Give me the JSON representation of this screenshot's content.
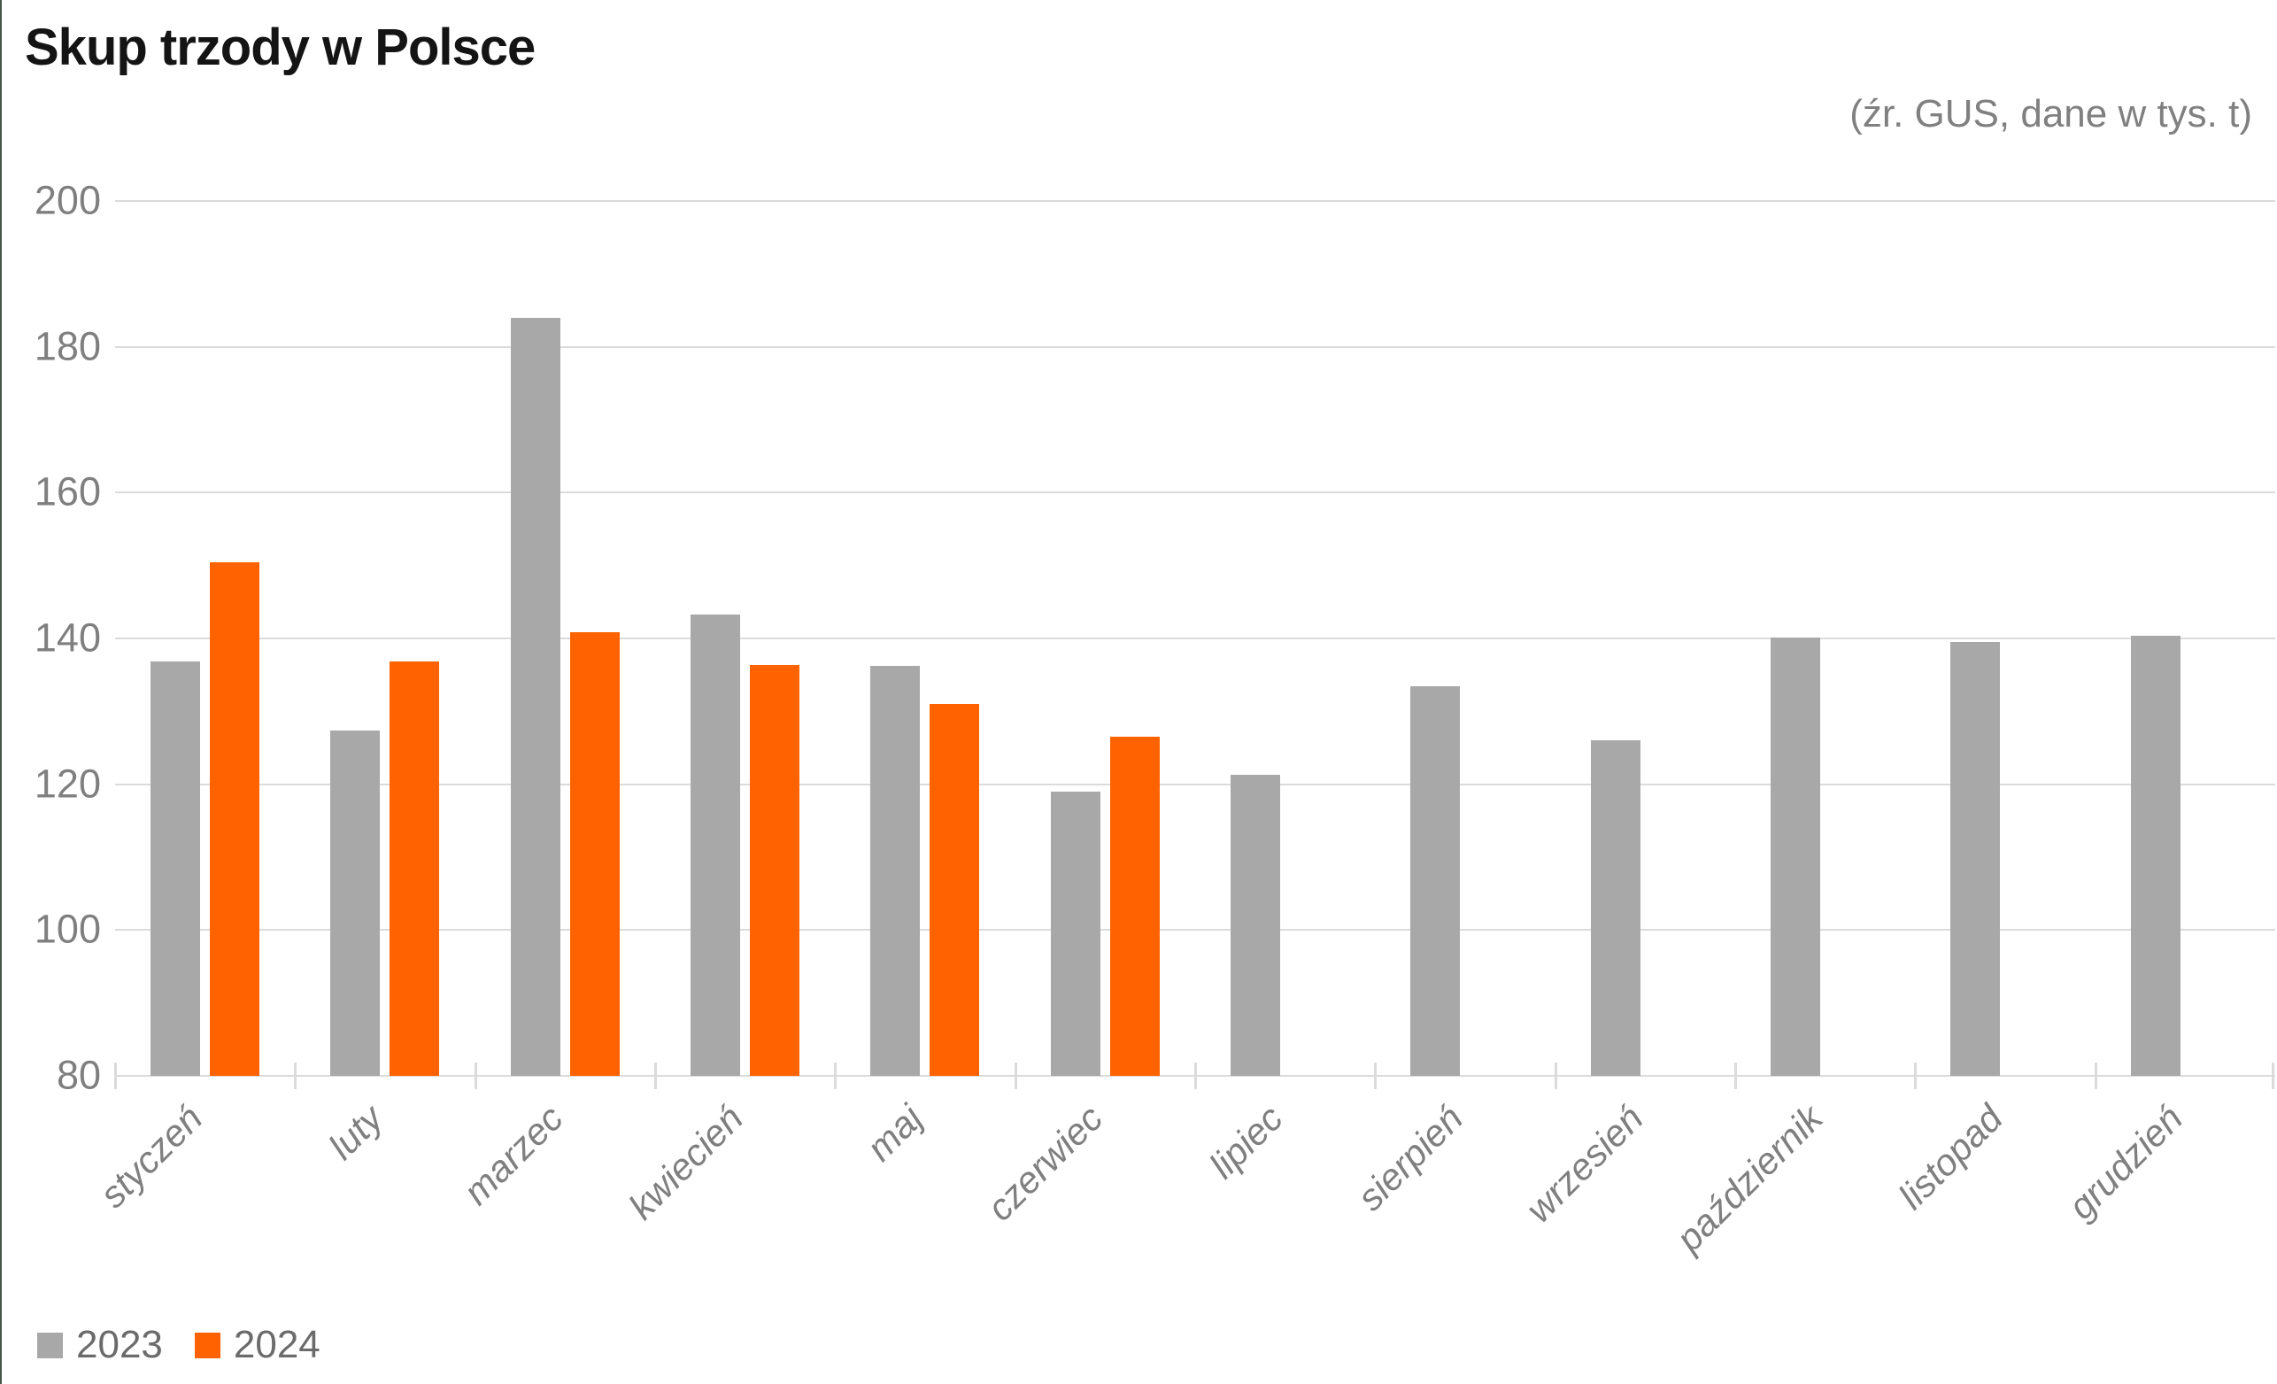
{
  "title": "Skup trzody w Polsce",
  "subtitle": "(źr. GUS, dane w tys. t)",
  "colors": {
    "bar_2023": "#A8A8A8",
    "bar_2024": "#FF6200",
    "grid": "#DBDBDB",
    "axis_text": "#7F7F7F",
    "legend_text": "#6B6B6B",
    "title_text": "#141414",
    "subtitle_text": "#808080",
    "left_edge": "#46584C"
  },
  "legend": [
    {
      "label": "2023",
      "color_key": "bar_2023"
    },
    {
      "label": "2024",
      "color_key": "bar_2024"
    }
  ],
  "chart_data": {
    "type": "bar",
    "title": "Skup trzody w Polsce",
    "subtitle": "(źr. GUS, dane w tys. t)",
    "unit": "tys. t",
    "categories": [
      "styczeń",
      "luty",
      "marzec",
      "kwiecień",
      "maj",
      "czerwiec",
      "lipiec",
      "sierpień",
      "wrzesień",
      "październik",
      "listopad",
      "grudzień"
    ],
    "series": [
      {
        "name": "2023",
        "color_key": "bar_2023",
        "values": [
          136.9,
          127.4,
          184.0,
          143.3,
          136.2,
          119.0,
          121.3,
          133.4,
          126.0,
          140.1,
          139.5,
          140.4
        ]
      },
      {
        "name": "2024",
        "color_key": "bar_2024",
        "values": [
          150.4,
          136.9,
          140.8,
          136.3,
          131.0,
          126.5,
          null,
          null,
          null,
          null,
          null,
          null
        ]
      }
    ],
    "ylim": [
      80,
      200
    ],
    "yticks": [
      80,
      100,
      120,
      140,
      160,
      180,
      200
    ],
    "xlabel": "",
    "ylabel": "",
    "grid": "horizontal",
    "legend_position": "bottom-left"
  }
}
